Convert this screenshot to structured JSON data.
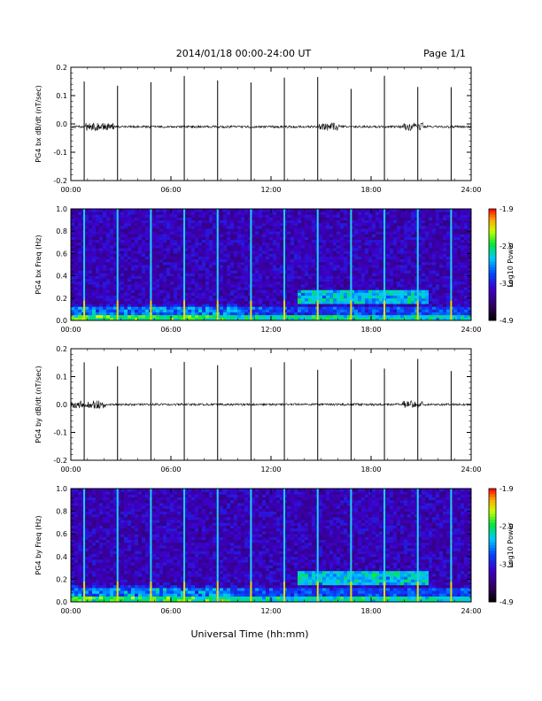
{
  "header": {
    "title": "2014/01/18  00:00-24:00 UT",
    "page": "Page 1/1"
  },
  "footer": {
    "xlabel": "Universal Time (hh:mm)"
  },
  "chart_data": [
    {
      "type": "line",
      "ylabel": "PG4 bx dB/dt (nT/sec)",
      "xlim": [
        0,
        24
      ],
      "ylim": [
        -0.2,
        0.2
      ],
      "yticks": [
        "0.2",
        "0.1",
        "0.0",
        "-0.1",
        "-0.2"
      ],
      "xticks": [
        "00:00",
        "06:00",
        "12:00",
        "18:00",
        "24:00"
      ],
      "baseline": -0.01,
      "spike_times_hours": [
        0.8,
        2.8,
        4.8,
        6.8,
        8.8,
        10.8,
        12.8,
        14.8,
        16.8,
        18.8,
        20.8,
        22.8
      ],
      "noise_bursts_hours": [
        1.5,
        2.0,
        15.5,
        20.5
      ]
    },
    {
      "type": "heatmap",
      "ylabel": "PG4 bx Freq (Hz)",
      "xlim": [
        0,
        24
      ],
      "ylim": [
        0,
        1.0
      ],
      "yticks": [
        "1.0",
        "0.8",
        "0.6",
        "0.4",
        "0.2",
        "0.0"
      ],
      "xticks": [
        "00:00",
        "06:00",
        "12:00",
        "18:00",
        "24:00"
      ],
      "colorbar_label": "Log10 Power",
      "colorbar_ticks": [
        "-1.9",
        "-2.9",
        "-3.9",
        "-4.9"
      ],
      "colorbar_range": [
        -4.9,
        -1.9
      ],
      "vertical_lines_hours": [
        0.8,
        2.8,
        4.8,
        6.8,
        8.8,
        10.8,
        12.8,
        14.8,
        16.8,
        18.8,
        20.8,
        22.8
      ],
      "band": {
        "start_hour": 13.5,
        "end_hour": 21.5,
        "freq_center": 0.22
      }
    },
    {
      "type": "line",
      "ylabel": "PG4 by dB/dt (nT/sec)",
      "xlim": [
        0,
        24
      ],
      "ylim": [
        -0.2,
        0.2
      ],
      "yticks": [
        "0.2",
        "0.1",
        "0.0",
        "-0.1",
        "-0.2"
      ],
      "xticks": [
        "00:00",
        "06:00",
        "12:00",
        "18:00",
        "24:00"
      ],
      "baseline": 0.0,
      "spike_times_hours": [
        0.8,
        2.8,
        4.8,
        6.8,
        8.8,
        10.8,
        12.8,
        14.8,
        16.8,
        18.8,
        20.8,
        22.8
      ],
      "noise_bursts_hours": [
        0.5,
        1.5,
        20.5
      ]
    },
    {
      "type": "heatmap",
      "ylabel": "PG4 by Freq (Hz)",
      "xlim": [
        0,
        24
      ],
      "ylim": [
        0,
        1.0
      ],
      "yticks": [
        "1.0",
        "0.8",
        "0.6",
        "0.4",
        "0.2",
        "0.0"
      ],
      "xticks": [
        "00:00",
        "06:00",
        "12:00",
        "18:00",
        "24:00"
      ],
      "colorbar_label": "Log10 Power",
      "colorbar_ticks": [
        "-1.9",
        "-2.9",
        "-3.9",
        "-4.9"
      ],
      "colorbar_range": [
        -4.9,
        -1.9
      ],
      "vertical_lines_hours": [
        0.8,
        2.8,
        4.8,
        6.8,
        8.8,
        10.8,
        12.8,
        14.8,
        16.8,
        18.8,
        20.8,
        22.8
      ],
      "band": {
        "start_hour": 13.5,
        "end_hour": 21.5,
        "freq_center": 0.22
      }
    }
  ]
}
